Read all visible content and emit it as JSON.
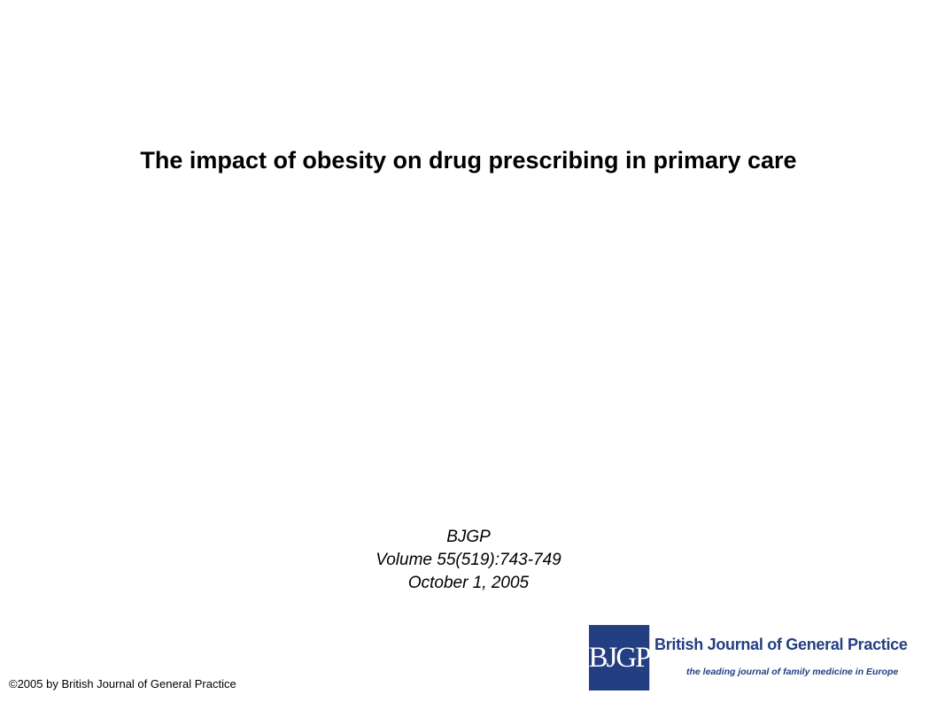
{
  "title": "The impact of obesity on drug prescribing in primary care",
  "citation": {
    "journal": "BJGP",
    "volume": "Volume 55(519):743-749",
    "date": "October 1, 2005"
  },
  "copyright": "©2005 by British Journal of General Practice",
  "logo": {
    "mark": "BJGP",
    "name": "British Journal of General Practice",
    "tagline": "the leading journal of family medicine in Europe",
    "color": "#233f82"
  }
}
